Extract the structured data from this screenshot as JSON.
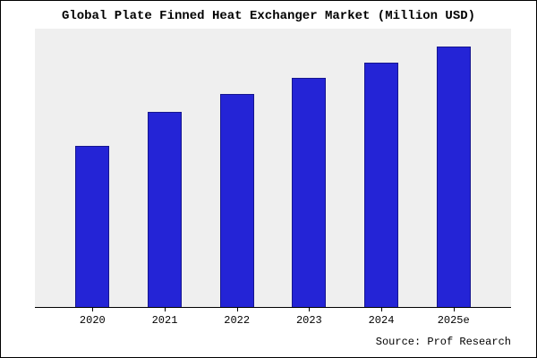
{
  "chart_data": {
    "type": "bar",
    "title": "Global Plate Finned Heat Exchanger Market (Million USD)",
    "categories": [
      "2020",
      "2021",
      "2022",
      "2023",
      "2024",
      "2025e"
    ],
    "values": [
      62,
      75,
      82,
      88,
      94,
      100
    ],
    "xlabel": "",
    "ylabel": "",
    "ylim": [
      0,
      107
    ],
    "y_axis_labels_visible": false,
    "gridlines": false,
    "legend": "none",
    "source": "Source: Prof Research",
    "colors": {
      "bar_fill": "#2424d6",
      "bar_border": "#16168f",
      "plot_background": "#efefef",
      "page_background": "#ffffff",
      "frame_border": "#000000",
      "text": "#000000"
    }
  }
}
